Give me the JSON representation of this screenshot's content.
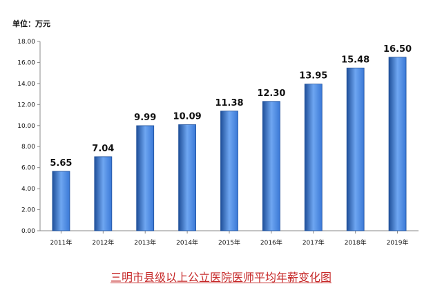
{
  "chart_data": {
    "type": "bar",
    "title": "三明市县级以上公立医院医师平均年薪变化图",
    "unit_label": "单位：万元",
    "categories": [
      "2011年",
      "2012年",
      "2013年",
      "2014年",
      "2015年",
      "2016年",
      "2017年",
      "2018年",
      "2019年"
    ],
    "values": [
      5.65,
      7.04,
      9.99,
      10.09,
      11.38,
      12.3,
      13.95,
      15.48,
      16.5
    ],
    "value_labels": [
      "5.65",
      "7.04",
      "9.99",
      "10.09",
      "11.38",
      "12.30",
      "13.95",
      "15.48",
      "16.50"
    ],
    "y_ticks": [
      "0.00",
      "2.00",
      "4.00",
      "6.00",
      "8.00",
      "10.00",
      "12.00",
      "14.00",
      "16.00",
      "18.00"
    ],
    "ylim": [
      0,
      18
    ],
    "grid": false,
    "legend": "none",
    "colors": {
      "bar_dark": "#1f4f99",
      "bar_mid": "#3a78d6",
      "bar_light": "#6ea6f1",
      "axis": "#8a8a8a",
      "title": "#c62828"
    }
  }
}
